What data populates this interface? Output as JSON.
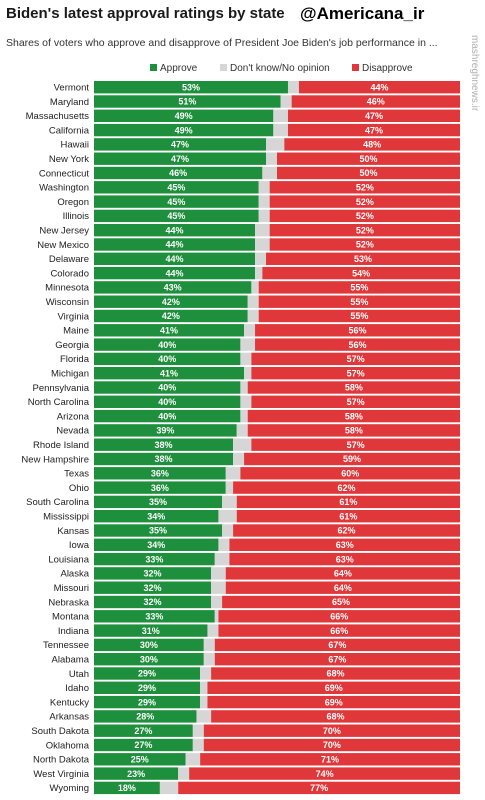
{
  "header": {
    "title": "Biden's latest approval ratings by state",
    "handle": "@Americana_ir",
    "subtitle": "Shares of voters who approve and disapprove of President Joe Biden's job performance in ...",
    "watermark": "mashreghnews.ir"
  },
  "colors": {
    "approve": "#1e8f3c",
    "neutral": "#d6d6d6",
    "disapprove": "#e0373a"
  },
  "chart_data": {
    "type": "bar",
    "orientation": "horizontal",
    "stacked": true,
    "xlim": [
      0,
      100
    ],
    "legend": "top",
    "categories": [
      "Vermont",
      "Maryland",
      "Massachusetts",
      "California",
      "Hawaii",
      "New York",
      "Connecticut",
      "Washington",
      "Oregon",
      "Illinois",
      "New Jersey",
      "New Mexico",
      "Delaware",
      "Colorado",
      "Minnesota",
      "Wisconsin",
      "Virginia",
      "Maine",
      "Georgia",
      "Florida",
      "Michigan",
      "Pennsylvania",
      "North Carolina",
      "Arizona",
      "Nevada",
      "Rhode Island",
      "New Hampshire",
      "Texas",
      "Ohio",
      "South Carolina",
      "Mississippi",
      "Kansas",
      "Iowa",
      "Louisiana",
      "Alaska",
      "Missouri",
      "Nebraska",
      "Montana",
      "Indiana",
      "Tennessee",
      "Alabama",
      "Utah",
      "Idaho",
      "Kentucky",
      "Arkansas",
      "South Dakota",
      "Oklahoma",
      "North Dakota",
      "West Virginia",
      "Wyoming"
    ],
    "series": [
      {
        "name": "Approve",
        "values": [
          53,
          51,
          49,
          49,
          47,
          47,
          46,
          45,
          45,
          45,
          44,
          44,
          44,
          44,
          43,
          42,
          42,
          41,
          40,
          40,
          41,
          40,
          40,
          40,
          39,
          38,
          38,
          36,
          36,
          35,
          34,
          35,
          34,
          33,
          32,
          32,
          32,
          33,
          31,
          30,
          30,
          29,
          29,
          29,
          28,
          27,
          27,
          25,
          23,
          18
        ]
      },
      {
        "name": "Don't know/No opinion",
        "values": [
          3,
          3,
          4,
          4,
          5,
          3,
          4,
          3,
          3,
          3,
          4,
          4,
          3,
          2,
          2,
          3,
          3,
          3,
          4,
          3,
          2,
          2,
          3,
          2,
          3,
          5,
          3,
          4,
          2,
          4,
          5,
          3,
          3,
          4,
          4,
          4,
          3,
          1,
          3,
          3,
          3,
          3,
          2,
          2,
          4,
          3,
          3,
          4,
          3,
          5
        ]
      },
      {
        "name": "Disapprove",
        "values": [
          44,
          46,
          47,
          47,
          48,
          50,
          50,
          52,
          52,
          52,
          52,
          52,
          53,
          54,
          55,
          55,
          55,
          56,
          56,
          57,
          57,
          58,
          57,
          58,
          58,
          57,
          59,
          60,
          62,
          61,
          61,
          62,
          63,
          63,
          64,
          64,
          65,
          66,
          66,
          67,
          67,
          68,
          69,
          69,
          68,
          70,
          70,
          71,
          74,
          77
        ]
      }
    ],
    "value_suffix": "%"
  }
}
